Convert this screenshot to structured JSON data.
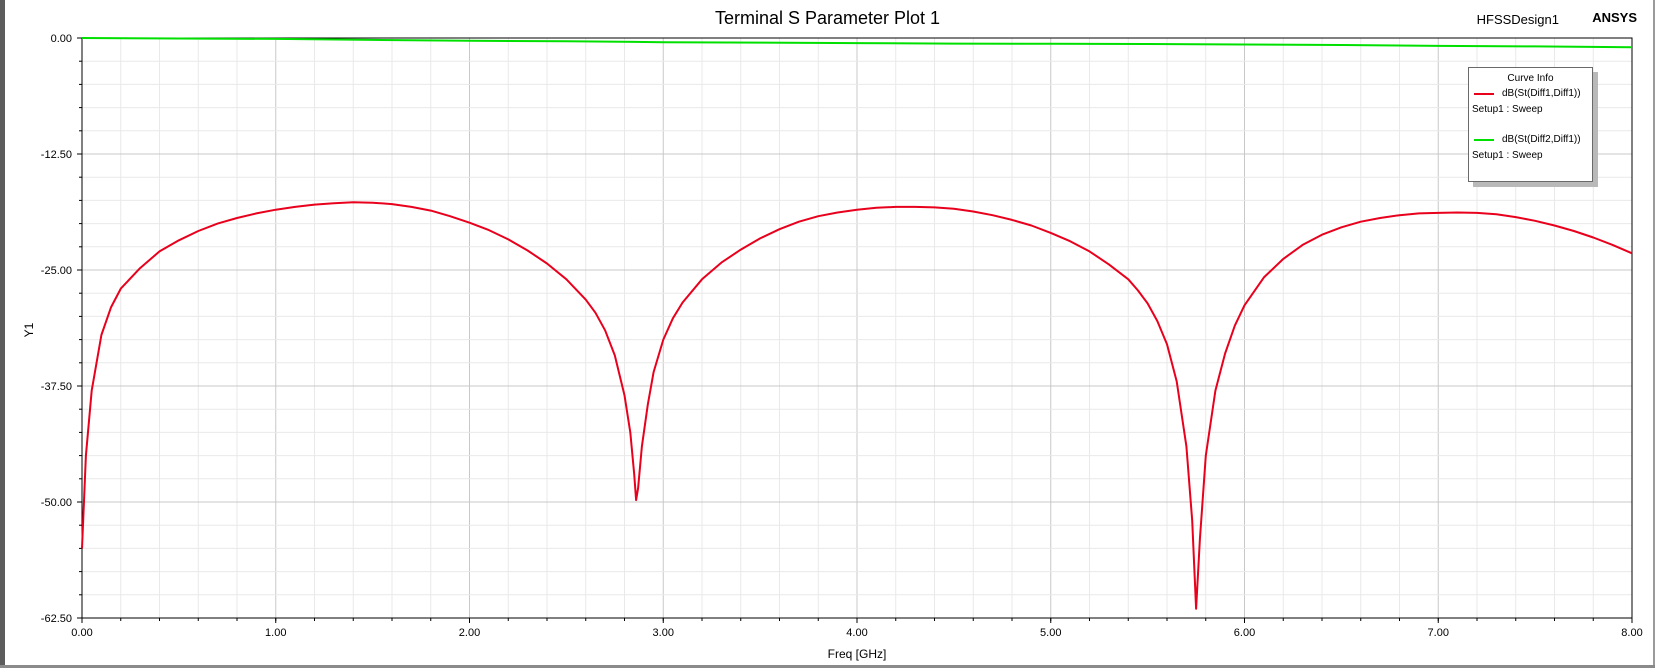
{
  "title": "Terminal S Parameter Plot 1",
  "design_name": "HFSSDesign1",
  "brand": "ANSYS",
  "legend": {
    "title": "Curve Info",
    "entries": [
      {
        "name": "dB(St(Diff1,Diff1))",
        "setup": "Setup1 : Sweep",
        "color": "#e8001c"
      },
      {
        "name": "dB(St(Diff2,Diff1))",
        "setup": "Setup1 : Sweep",
        "color": "#00e000"
      }
    ]
  },
  "chart_data": {
    "type": "line",
    "title": "Terminal S Parameter Plot 1",
    "xlabel": "Freq [GHz]",
    "ylabel": "Y1",
    "xlim": [
      0,
      8
    ],
    "ylim": [
      -62.5,
      0
    ],
    "x_ticks": [
      "0.00",
      "1.00",
      "2.00",
      "3.00",
      "4.00",
      "5.00",
      "6.00",
      "7.00",
      "8.00"
    ],
    "y_ticks": [
      "0.00",
      "-12.50",
      "-25.00",
      "-37.50",
      "-50.00",
      "-62.50"
    ],
    "grid": true,
    "legend_position": "top-right",
    "series": [
      {
        "name": "dB(St(Diff1,Diff1))",
        "color": "#e8001c",
        "points": [
          [
            0.0,
            -55.0
          ],
          [
            0.02,
            -45.0
          ],
          [
            0.05,
            -38.0
          ],
          [
            0.1,
            -32.0
          ],
          [
            0.15,
            -29.0
          ],
          [
            0.2,
            -27.0
          ],
          [
            0.3,
            -24.8
          ],
          [
            0.4,
            -23.0
          ],
          [
            0.5,
            -21.8
          ],
          [
            0.6,
            -20.8
          ],
          [
            0.7,
            -20.0
          ],
          [
            0.8,
            -19.4
          ],
          [
            0.9,
            -18.9
          ],
          [
            1.0,
            -18.5
          ],
          [
            1.1,
            -18.2
          ],
          [
            1.2,
            -17.95
          ],
          [
            1.3,
            -17.8
          ],
          [
            1.4,
            -17.7
          ],
          [
            1.5,
            -17.75
          ],
          [
            1.6,
            -17.9
          ],
          [
            1.7,
            -18.2
          ],
          [
            1.8,
            -18.6
          ],
          [
            1.9,
            -19.2
          ],
          [
            2.0,
            -19.9
          ],
          [
            2.1,
            -20.7
          ],
          [
            2.2,
            -21.7
          ],
          [
            2.3,
            -22.9
          ],
          [
            2.4,
            -24.3
          ],
          [
            2.5,
            -26.0
          ],
          [
            2.6,
            -28.2
          ],
          [
            2.65,
            -29.6
          ],
          [
            2.7,
            -31.5
          ],
          [
            2.75,
            -34.2
          ],
          [
            2.8,
            -38.5
          ],
          [
            2.83,
            -42.5
          ],
          [
            2.85,
            -47.0
          ],
          [
            2.86,
            -49.8
          ],
          [
            2.87,
            -48.5
          ],
          [
            2.89,
            -44.0
          ],
          [
            2.92,
            -39.5
          ],
          [
            2.95,
            -36.0
          ],
          [
            3.0,
            -32.5
          ],
          [
            3.05,
            -30.2
          ],
          [
            3.1,
            -28.5
          ],
          [
            3.2,
            -26.0
          ],
          [
            3.3,
            -24.2
          ],
          [
            3.4,
            -22.8
          ],
          [
            3.5,
            -21.6
          ],
          [
            3.6,
            -20.6
          ],
          [
            3.7,
            -19.8
          ],
          [
            3.8,
            -19.2
          ],
          [
            3.9,
            -18.8
          ],
          [
            4.0,
            -18.5
          ],
          [
            4.1,
            -18.3
          ],
          [
            4.2,
            -18.2
          ],
          [
            4.3,
            -18.2
          ],
          [
            4.4,
            -18.25
          ],
          [
            4.5,
            -18.4
          ],
          [
            4.6,
            -18.7
          ],
          [
            4.7,
            -19.1
          ],
          [
            4.8,
            -19.6
          ],
          [
            4.9,
            -20.2
          ],
          [
            5.0,
            -21.0
          ],
          [
            5.1,
            -21.9
          ],
          [
            5.2,
            -23.0
          ],
          [
            5.3,
            -24.4
          ],
          [
            5.4,
            -26.0
          ],
          [
            5.45,
            -27.2
          ],
          [
            5.5,
            -28.6
          ],
          [
            5.55,
            -30.5
          ],
          [
            5.6,
            -33.0
          ],
          [
            5.65,
            -37.0
          ],
          [
            5.7,
            -44.0
          ],
          [
            5.73,
            -52.0
          ],
          [
            5.75,
            -61.5
          ],
          [
            5.77,
            -54.0
          ],
          [
            5.8,
            -45.0
          ],
          [
            5.85,
            -38.0
          ],
          [
            5.9,
            -34.0
          ],
          [
            5.95,
            -31.0
          ],
          [
            6.0,
            -28.8
          ],
          [
            6.1,
            -25.8
          ],
          [
            6.2,
            -23.8
          ],
          [
            6.3,
            -22.3
          ],
          [
            6.4,
            -21.2
          ],
          [
            6.5,
            -20.4
          ],
          [
            6.6,
            -19.8
          ],
          [
            6.7,
            -19.4
          ],
          [
            6.8,
            -19.1
          ],
          [
            6.9,
            -18.9
          ],
          [
            7.0,
            -18.85
          ],
          [
            7.1,
            -18.8
          ],
          [
            7.2,
            -18.85
          ],
          [
            7.3,
            -19.0
          ],
          [
            7.4,
            -19.3
          ],
          [
            7.5,
            -19.7
          ],
          [
            7.6,
            -20.2
          ],
          [
            7.7,
            -20.8
          ],
          [
            7.8,
            -21.5
          ],
          [
            7.9,
            -22.3
          ],
          [
            8.0,
            -23.2
          ]
        ]
      },
      {
        "name": "dB(St(Diff2,Diff1))",
        "color": "#00e000",
        "points": [
          [
            0.0,
            0.0
          ],
          [
            0.5,
            -0.05
          ],
          [
            1.0,
            -0.1
          ],
          [
            1.5,
            -0.2
          ],
          [
            2.0,
            -0.3
          ],
          [
            2.5,
            -0.35
          ],
          [
            3.0,
            -0.45
          ],
          [
            3.5,
            -0.5
          ],
          [
            4.0,
            -0.55
          ],
          [
            4.5,
            -0.6
          ],
          [
            5.0,
            -0.62
          ],
          [
            5.5,
            -0.65
          ],
          [
            6.0,
            -0.7
          ],
          [
            6.5,
            -0.75
          ],
          [
            7.0,
            -0.85
          ],
          [
            7.5,
            -0.9
          ],
          [
            8.0,
            -1.0
          ]
        ]
      }
    ]
  }
}
